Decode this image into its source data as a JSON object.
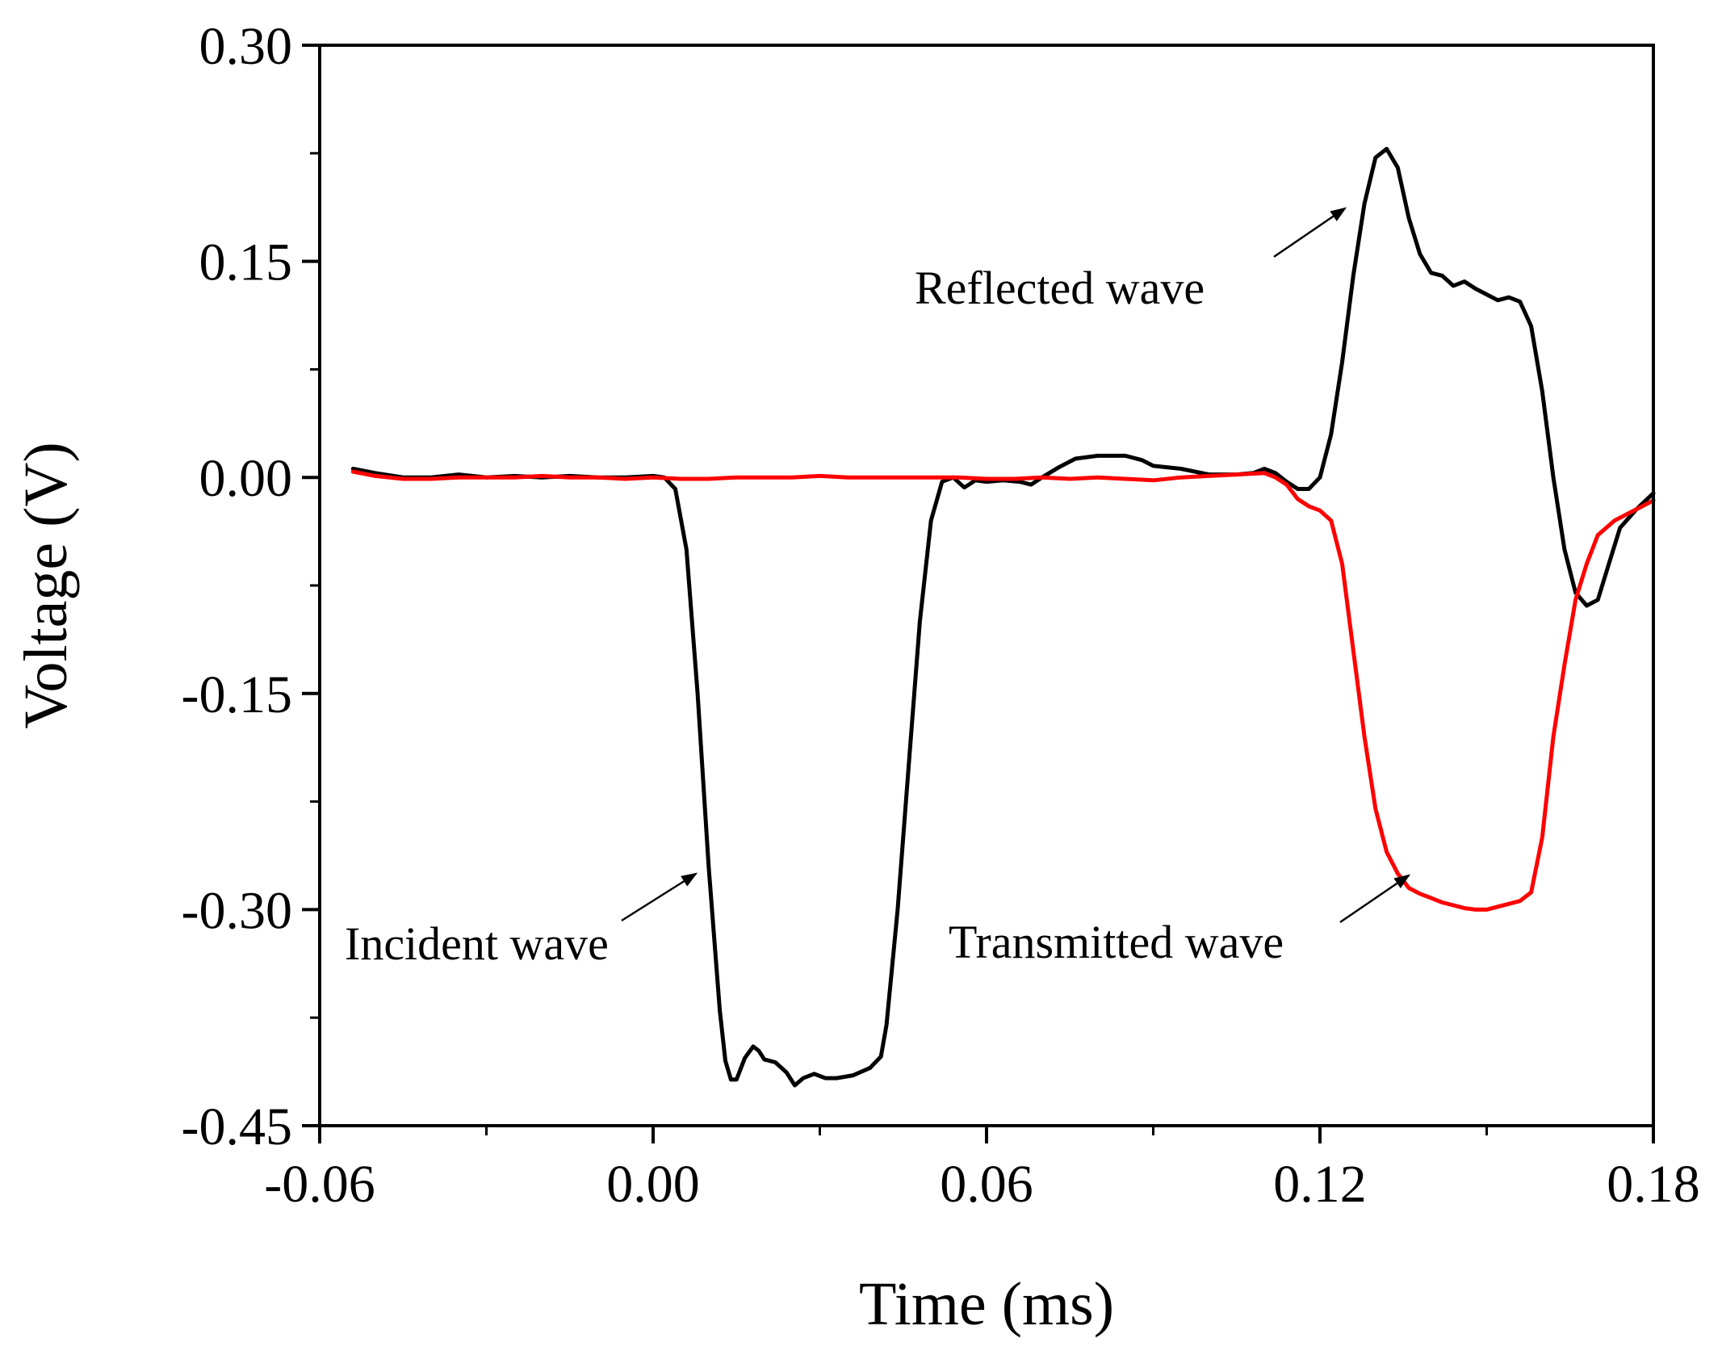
{
  "chart_data": {
    "type": "line",
    "title": "",
    "xlabel": "Time (ms)",
    "ylabel": "Voltage (V)",
    "xlim": [
      -0.06,
      0.18
    ],
    "ylim": [
      -0.45,
      0.3
    ],
    "xticks": [
      -0.06,
      0.0,
      0.06,
      0.12,
      0.18
    ],
    "xtick_labels": [
      "-0.06",
      "0.00",
      "0.06",
      "0.12",
      "0.18"
    ],
    "yticks": [
      0.3,
      0.15,
      0.0,
      -0.15,
      -0.3,
      -0.45
    ],
    "ytick_labels": [
      "0.30",
      "0.15",
      "0.00",
      "-0.15",
      "-0.30",
      "-0.45"
    ],
    "grid": false,
    "colors": {
      "black_series": "#000000",
      "red_series": "#ff0000",
      "axis": "#000000"
    },
    "series": [
      {
        "name": "Incident / Reflected wave",
        "color": "#000000",
        "points": [
          [
            -0.054,
            0.006
          ],
          [
            -0.05,
            0.003
          ],
          [
            -0.045,
            0.0
          ],
          [
            -0.04,
            0.0
          ],
          [
            -0.035,
            0.002
          ],
          [
            -0.03,
            0.0
          ],
          [
            -0.025,
            0.001
          ],
          [
            -0.02,
            0.0
          ],
          [
            -0.015,
            0.001
          ],
          [
            -0.01,
            0.0
          ],
          [
            -0.005,
            0.0
          ],
          [
            0.0,
            0.001
          ],
          [
            0.002,
            0.0
          ],
          [
            0.004,
            -0.008
          ],
          [
            0.006,
            -0.05
          ],
          [
            0.008,
            -0.15
          ],
          [
            0.01,
            -0.27
          ],
          [
            0.012,
            -0.37
          ],
          [
            0.013,
            -0.405
          ],
          [
            0.014,
            -0.418
          ],
          [
            0.015,
            -0.418
          ],
          [
            0.0165,
            -0.403
          ],
          [
            0.018,
            -0.395
          ],
          [
            0.019,
            -0.398
          ],
          [
            0.02,
            -0.404
          ],
          [
            0.022,
            -0.406
          ],
          [
            0.024,
            -0.413
          ],
          [
            0.0255,
            -0.422
          ],
          [
            0.027,
            -0.417
          ],
          [
            0.029,
            -0.414
          ],
          [
            0.031,
            -0.417
          ],
          [
            0.033,
            -0.417
          ],
          [
            0.036,
            -0.415
          ],
          [
            0.039,
            -0.41
          ],
          [
            0.041,
            -0.402
          ],
          [
            0.042,
            -0.38
          ],
          [
            0.044,
            -0.3
          ],
          [
            0.046,
            -0.2
          ],
          [
            0.048,
            -0.1
          ],
          [
            0.05,
            -0.03
          ],
          [
            0.052,
            -0.003
          ],
          [
            0.054,
            0.0
          ],
          [
            0.056,
            -0.007
          ],
          [
            0.058,
            -0.002
          ],
          [
            0.06,
            -0.003
          ],
          [
            0.063,
            -0.002
          ],
          [
            0.066,
            -0.003
          ],
          [
            0.068,
            -0.005
          ],
          [
            0.07,
            0.0
          ],
          [
            0.073,
            0.007
          ],
          [
            0.076,
            0.013
          ],
          [
            0.08,
            0.015
          ],
          [
            0.085,
            0.015
          ],
          [
            0.088,
            0.012
          ],
          [
            0.09,
            0.008
          ],
          [
            0.095,
            0.006
          ],
          [
            0.1,
            0.002
          ],
          [
            0.105,
            0.002
          ],
          [
            0.108,
            0.003
          ],
          [
            0.11,
            0.006
          ],
          [
            0.112,
            0.003
          ],
          [
            0.114,
            -0.003
          ],
          [
            0.116,
            -0.008
          ],
          [
            0.118,
            -0.008
          ],
          [
            0.12,
            0.0
          ],
          [
            0.122,
            0.03
          ],
          [
            0.124,
            0.08
          ],
          [
            0.126,
            0.14
          ],
          [
            0.128,
            0.19
          ],
          [
            0.13,
            0.222
          ],
          [
            0.132,
            0.228
          ],
          [
            0.134,
            0.215
          ],
          [
            0.136,
            0.18
          ],
          [
            0.138,
            0.155
          ],
          [
            0.14,
            0.142
          ],
          [
            0.142,
            0.14
          ],
          [
            0.144,
            0.133
          ],
          [
            0.146,
            0.136
          ],
          [
            0.148,
            0.131
          ],
          [
            0.15,
            0.127
          ],
          [
            0.152,
            0.123
          ],
          [
            0.154,
            0.125
          ],
          [
            0.156,
            0.122
          ],
          [
            0.158,
            0.105
          ],
          [
            0.16,
            0.06
          ],
          [
            0.162,
            0.0
          ],
          [
            0.164,
            -0.05
          ],
          [
            0.166,
            -0.08
          ],
          [
            0.168,
            -0.089
          ],
          [
            0.17,
            -0.085
          ],
          [
            0.172,
            -0.06
          ],
          [
            0.174,
            -0.035
          ],
          [
            0.177,
            -0.022
          ],
          [
            0.18,
            -0.011
          ]
        ]
      },
      {
        "name": "Transmitted wave",
        "color": "#ff0000",
        "points": [
          [
            -0.054,
            0.004
          ],
          [
            -0.05,
            0.001
          ],
          [
            -0.045,
            -0.001
          ],
          [
            -0.04,
            -0.001
          ],
          [
            -0.035,
            0.0
          ],
          [
            -0.03,
            0.0
          ],
          [
            -0.025,
            0.0
          ],
          [
            -0.02,
            0.001
          ],
          [
            -0.015,
            0.0
          ],
          [
            -0.01,
            0.0
          ],
          [
            -0.005,
            -0.001
          ],
          [
            0.0,
            0.0
          ],
          [
            0.005,
            -0.001
          ],
          [
            0.01,
            -0.001
          ],
          [
            0.015,
            0.0
          ],
          [
            0.02,
            0.0
          ],
          [
            0.025,
            0.0
          ],
          [
            0.03,
            0.001
          ],
          [
            0.035,
            0.0
          ],
          [
            0.04,
            0.0
          ],
          [
            0.045,
            0.0
          ],
          [
            0.05,
            0.0
          ],
          [
            0.055,
            0.0
          ],
          [
            0.06,
            -0.001
          ],
          [
            0.065,
            -0.001
          ],
          [
            0.07,
            0.0
          ],
          [
            0.075,
            -0.001
          ],
          [
            0.08,
            0.0
          ],
          [
            0.085,
            -0.001
          ],
          [
            0.09,
            -0.002
          ],
          [
            0.095,
            0.0
          ],
          [
            0.1,
            0.001
          ],
          [
            0.105,
            0.002
          ],
          [
            0.11,
            0.003
          ],
          [
            0.112,
            0.0
          ],
          [
            0.114,
            -0.005
          ],
          [
            0.116,
            -0.015
          ],
          [
            0.118,
            -0.02
          ],
          [
            0.12,
            -0.023
          ],
          [
            0.122,
            -0.03
          ],
          [
            0.124,
            -0.06
          ],
          [
            0.126,
            -0.12
          ],
          [
            0.128,
            -0.18
          ],
          [
            0.13,
            -0.23
          ],
          [
            0.132,
            -0.26
          ],
          [
            0.134,
            -0.275
          ],
          [
            0.136,
            -0.285
          ],
          [
            0.138,
            -0.289
          ],
          [
            0.14,
            -0.292
          ],
          [
            0.142,
            -0.295
          ],
          [
            0.144,
            -0.297
          ],
          [
            0.146,
            -0.299
          ],
          [
            0.148,
            -0.3
          ],
          [
            0.15,
            -0.3
          ],
          [
            0.152,
            -0.298
          ],
          [
            0.154,
            -0.296
          ],
          [
            0.156,
            -0.294
          ],
          [
            0.158,
            -0.288
          ],
          [
            0.16,
            -0.25
          ],
          [
            0.162,
            -0.18
          ],
          [
            0.164,
            -0.13
          ],
          [
            0.166,
            -0.085
          ],
          [
            0.168,
            -0.06
          ],
          [
            0.17,
            -0.04
          ],
          [
            0.173,
            -0.03
          ],
          [
            0.176,
            -0.024
          ],
          [
            0.18,
            -0.016
          ]
        ]
      }
    ],
    "annotations": [
      {
        "id": "reflected",
        "text": "Reflected wave"
      },
      {
        "id": "incident",
        "text": "Incident wave"
      },
      {
        "id": "transmitted",
        "text": "Transmitted wave"
      }
    ]
  }
}
